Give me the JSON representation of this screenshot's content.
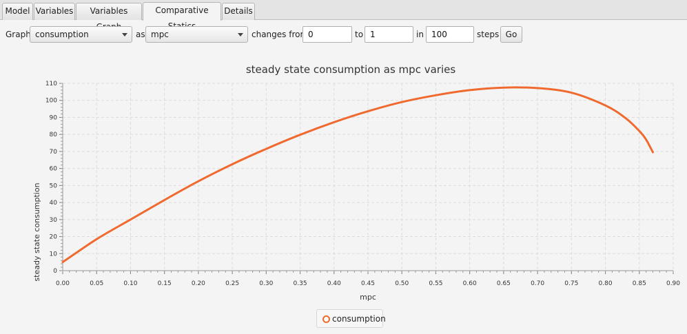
{
  "tabs": [
    {
      "label": "Model"
    },
    {
      "label": "Variables"
    },
    {
      "label": "Variables Graph"
    },
    {
      "label": "Comparative Statics",
      "active": true
    },
    {
      "label": "Details"
    }
  ],
  "controls": {
    "graph_label": "Graph",
    "graph_variable": "consumption",
    "as_label": "as",
    "as_variable": "mpc",
    "changes_from_label": "changes from",
    "from_value": "0",
    "to_label": "to",
    "to_value": "1",
    "in_label": "in",
    "steps_value": "100",
    "steps_label": "steps",
    "go_label": "Go"
  },
  "chart_data": {
    "type": "line",
    "title": "steady state consumption as mpc varies",
    "xlabel": "mpc",
    "ylabel": "steady state consumption",
    "xlim": [
      0,
      0.9
    ],
    "ylim": [
      0,
      110
    ],
    "xticks": [
      "0.00",
      "0.05",
      "0.10",
      "0.15",
      "0.20",
      "0.25",
      "0.30",
      "0.35",
      "0.40",
      "0.45",
      "0.50",
      "0.55",
      "0.60",
      "0.65",
      "0.70",
      "0.75",
      "0.80",
      "0.85",
      "0.90"
    ],
    "yticks": [
      "0",
      "10",
      "20",
      "30",
      "40",
      "50",
      "60",
      "70",
      "80",
      "90",
      "100",
      "110"
    ],
    "grid": true,
    "legend": "bottom-center",
    "color": "#f06a2f",
    "series": [
      {
        "name": "consumption",
        "x": [
          0.0,
          0.05,
          0.1,
          0.15,
          0.2,
          0.25,
          0.3,
          0.35,
          0.4,
          0.45,
          0.5,
          0.55,
          0.6,
          0.65,
          0.7,
          0.75,
          0.8,
          0.83,
          0.85,
          0.86,
          0.87
        ],
        "y": [
          5,
          18.5,
          30,
          41.5,
          52.5,
          62.5,
          71.5,
          79.8,
          87.2,
          93.6,
          99,
          103,
          106,
          107.5,
          107.2,
          104.5,
          97,
          89.5,
          82,
          77,
          69.5
        ]
      }
    ]
  }
}
